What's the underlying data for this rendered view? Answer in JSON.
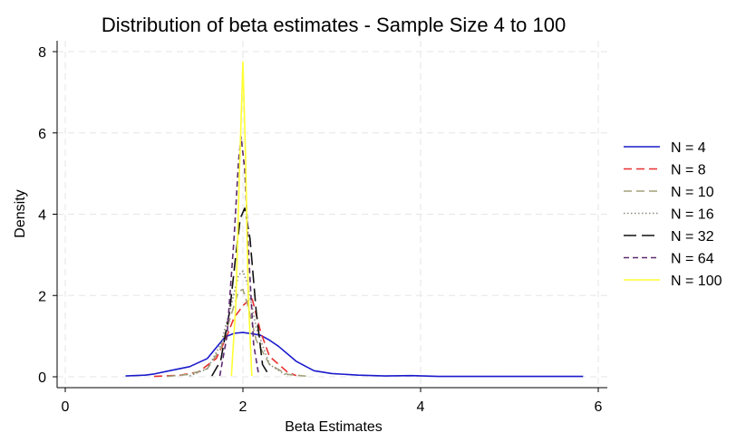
{
  "chart_data": {
    "type": "line",
    "title": "Distribution of beta estimates - Sample Size 4 to 100",
    "xlabel": "Beta Estimates",
    "ylabel": "Density",
    "xlim": [
      0,
      6
    ],
    "ylim": [
      0,
      8
    ],
    "xticks": [
      0,
      2,
      4,
      6
    ],
    "yticks": [
      0,
      2,
      4,
      6,
      8
    ],
    "grid": true,
    "legend_position": "right",
    "series": [
      {
        "name": "N = 4",
        "color": "#1a1acc",
        "dash": "solid",
        "x": [
          0.68,
          0.9,
          1.0,
          1.2,
          1.4,
          1.6,
          1.7,
          1.8,
          1.9,
          2.0,
          2.1,
          2.2,
          2.3,
          2.4,
          2.6,
          2.8,
          3.0,
          3.3,
          3.6,
          3.9,
          4.2,
          4.6,
          5.0,
          5.4,
          5.83
        ],
        "y": [
          0.02,
          0.04,
          0.07,
          0.16,
          0.25,
          0.45,
          0.72,
          0.98,
          1.07,
          1.09,
          1.06,
          1.02,
          0.9,
          0.75,
          0.38,
          0.15,
          0.08,
          0.04,
          0.02,
          0.03,
          0.01,
          0.01,
          0.01,
          0.01,
          0.01
        ]
      },
      {
        "name": "N = 8",
        "color": "#e83030",
        "dash": "long-dash",
        "x": [
          1.0,
          1.3,
          1.5,
          1.7,
          1.8,
          1.9,
          2.0,
          2.1,
          2.2,
          2.3,
          2.5,
          2.6
        ],
        "y": [
          0.01,
          0.04,
          0.12,
          0.45,
          0.9,
          1.45,
          1.75,
          1.95,
          1.1,
          0.5,
          0.12,
          0.03
        ]
      },
      {
        "name": "N = 10",
        "color": "#a3a07a",
        "dash": "long-dash",
        "x": [
          1.15,
          1.4,
          1.6,
          1.75,
          1.85,
          1.95,
          2.0,
          2.05,
          2.15,
          2.3,
          2.5,
          2.75
        ],
        "y": [
          0.01,
          0.06,
          0.2,
          0.7,
          1.4,
          2.1,
          2.15,
          1.8,
          0.9,
          0.3,
          0.06,
          0.01
        ]
      },
      {
        "name": "N = 16",
        "color": "#8a8a7a",
        "dash": "dotted",
        "x": [
          1.4,
          1.6,
          1.75,
          1.85,
          1.95,
          2.0,
          2.05,
          2.15,
          2.3,
          2.5
        ],
        "y": [
          0.02,
          0.2,
          0.8,
          1.6,
          2.5,
          2.6,
          2.3,
          1.2,
          0.3,
          0.02
        ]
      },
      {
        "name": "N = 32",
        "color": "#111111",
        "dash": "extra-long-dash",
        "x": [
          1.65,
          1.75,
          1.85,
          1.92,
          1.97,
          2.02,
          2.08,
          2.15,
          2.22,
          2.3
        ],
        "y": [
          0.02,
          0.4,
          1.6,
          3.0,
          3.9,
          4.15,
          3.4,
          1.6,
          0.3,
          0.02
        ]
      },
      {
        "name": "N = 64",
        "color": "#5e2a6e",
        "dash": "dash",
        "x": [
          1.74,
          1.82,
          1.9,
          1.95,
          1.98,
          2.02,
          2.07,
          2.12,
          2.18
        ],
        "y": [
          0.02,
          1.0,
          3.4,
          5.3,
          5.9,
          5.1,
          2.8,
          0.8,
          0.02
        ]
      },
      {
        "name": "N = 100",
        "color": "#ffff33",
        "dash": "solid",
        "x": [
          1.87,
          1.92,
          1.96,
          2.0,
          2.03,
          2.06,
          2.1
        ],
        "y": [
          0.02,
          1.8,
          5.0,
          7.75,
          5.4,
          2.0,
          0.02
        ]
      }
    ]
  }
}
